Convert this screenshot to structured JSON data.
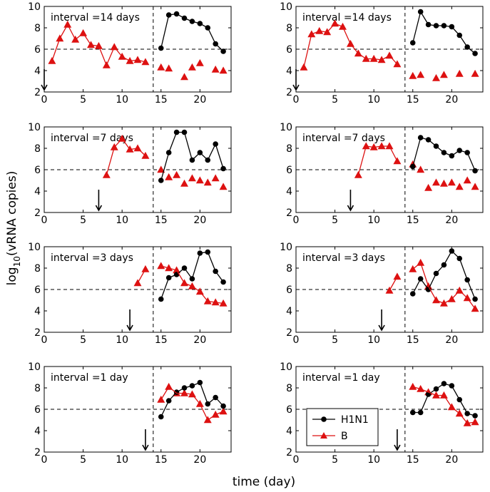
{
  "chart_data": {
    "type": "line",
    "ylabel_main": "log",
    "ylabel_sub": "10",
    "ylabel_rest": "(vRNA copies)",
    "xlabel": "time (day)",
    "xlim": [
      0,
      24
    ],
    "ylim": [
      2,
      10
    ],
    "xticks": [
      "0",
      "5",
      "10",
      "15",
      "20"
    ],
    "yticks": [
      "2",
      "4",
      "6",
      "8",
      "10"
    ],
    "threshold": 6,
    "switch_day": 14,
    "colors": {
      "h1n1": "#000000",
      "b": "#dd1111"
    },
    "legend": {
      "h1n1": "H1N1",
      "b": "B"
    },
    "panels": [
      {
        "label": "interval =14 days",
        "arrow": 0,
        "b": [
          [
            1,
            4.9
          ],
          [
            2,
            7.0
          ],
          [
            3,
            8.3
          ],
          [
            4,
            6.9
          ],
          [
            5,
            7.5
          ],
          [
            6,
            6.4
          ],
          [
            7,
            6.3
          ],
          [
            8,
            4.5
          ],
          [
            9,
            6.2
          ],
          [
            10,
            5.3
          ],
          [
            11,
            4.9
          ],
          [
            12,
            5.0
          ],
          [
            13,
            4.8
          ]
        ],
        "b_late": [
          [
            15,
            4.3
          ],
          [
            16,
            4.2
          ],
          [
            18,
            3.4
          ],
          [
            19,
            4.3
          ],
          [
            20,
            4.7
          ],
          [
            22,
            4.1
          ],
          [
            23,
            4.0
          ]
        ],
        "h1n1": [
          [
            15,
            6.1
          ],
          [
            16,
            9.2
          ],
          [
            17,
            9.3
          ],
          [
            18,
            8.9
          ],
          [
            19,
            8.6
          ],
          [
            20,
            8.4
          ],
          [
            21,
            8.0
          ],
          [
            22,
            6.5
          ],
          [
            23,
            5.8
          ]
        ]
      },
      {
        "label": "interval =14 days",
        "arrow": 0,
        "b": [
          [
            1,
            4.3
          ],
          [
            2,
            7.4
          ],
          [
            3,
            7.7
          ],
          [
            4,
            7.6
          ],
          [
            5,
            8.4
          ],
          [
            6,
            8.1
          ],
          [
            7,
            6.5
          ],
          [
            8,
            5.6
          ],
          [
            9,
            5.1
          ],
          [
            10,
            5.1
          ],
          [
            11,
            5.0
          ],
          [
            12,
            5.4
          ],
          [
            13,
            4.6
          ]
        ],
        "b_late": [
          [
            15,
            3.5
          ],
          [
            16,
            3.6
          ],
          [
            18,
            3.3
          ],
          [
            19,
            3.6
          ],
          [
            21,
            3.7
          ],
          [
            23,
            3.7
          ]
        ],
        "h1n1": [
          [
            15,
            6.6
          ],
          [
            16,
            9.5
          ],
          [
            17,
            8.3
          ],
          [
            18,
            8.2
          ],
          [
            19,
            8.2
          ],
          [
            20,
            8.1
          ],
          [
            21,
            7.3
          ],
          [
            22,
            6.2
          ],
          [
            23,
            5.6
          ]
        ]
      },
      {
        "label": "interval =7 days",
        "arrow": 7,
        "b": [
          [
            8,
            5.5
          ],
          [
            9,
            8.1
          ],
          [
            10,
            8.9
          ],
          [
            11,
            7.9
          ],
          [
            12,
            8.0
          ],
          [
            13,
            7.3
          ]
        ],
        "b_late": [
          [
            15,
            6.0
          ],
          [
            16,
            5.3
          ],
          [
            17,
            5.5
          ],
          [
            18,
            4.7
          ],
          [
            19,
            5.2
          ],
          [
            20,
            5.0
          ],
          [
            21,
            4.8
          ],
          [
            22,
            5.2
          ],
          [
            23,
            4.4
          ]
        ],
        "h1n1": [
          [
            15,
            5.0
          ],
          [
            16,
            7.6
          ],
          [
            17,
            9.5
          ],
          [
            18,
            9.5
          ],
          [
            19,
            6.9
          ],
          [
            20,
            7.6
          ],
          [
            21,
            6.9
          ],
          [
            22,
            8.4
          ],
          [
            23,
            6.1
          ]
        ]
      },
      {
        "label": "interval =7 days",
        "arrow": 7,
        "b": [
          [
            8,
            5.5
          ],
          [
            9,
            8.2
          ],
          [
            10,
            8.1
          ],
          [
            11,
            8.2
          ],
          [
            12,
            8.2
          ],
          [
            13,
            6.8
          ]
        ],
        "b_late": [
          [
            15,
            6.5
          ],
          [
            16,
            6.0
          ],
          [
            17,
            4.3
          ],
          [
            18,
            4.8
          ],
          [
            19,
            4.7
          ],
          [
            20,
            4.8
          ],
          [
            21,
            4.4
          ],
          [
            22,
            5.0
          ],
          [
            23,
            4.4
          ]
        ],
        "h1n1": [
          [
            15,
            6.3
          ],
          [
            16,
            9.0
          ],
          [
            17,
            8.8
          ],
          [
            18,
            8.2
          ],
          [
            19,
            7.6
          ],
          [
            20,
            7.3
          ],
          [
            21,
            7.8
          ],
          [
            22,
            7.6
          ],
          [
            23,
            5.9
          ]
        ]
      },
      {
        "label": "interval =3 days",
        "arrow": 11,
        "b": [
          [
            12,
            6.6
          ],
          [
            13,
            7.9
          ]
        ],
        "b_late": [
          [
            15,
            8.2
          ],
          [
            16,
            8.0
          ],
          [
            17,
            7.8
          ],
          [
            18,
            6.6
          ],
          [
            19,
            6.3
          ],
          [
            20,
            5.8
          ],
          [
            21,
            4.9
          ],
          [
            22,
            4.8
          ],
          [
            23,
            4.7
          ]
        ],
        "h1n1": [
          [
            15,
            5.1
          ],
          [
            16,
            7.1
          ],
          [
            17,
            7.4
          ],
          [
            18,
            8.0
          ],
          [
            19,
            7.0
          ],
          [
            20,
            9.4
          ],
          [
            21,
            9.5
          ],
          [
            22,
            7.7
          ],
          [
            23,
            6.7
          ]
        ]
      },
      {
        "label": "interval =3 days",
        "arrow": 11,
        "b": [
          [
            12,
            5.9
          ],
          [
            13,
            7.2
          ]
        ],
        "b_late": [
          [
            15,
            7.9
          ],
          [
            16,
            8.5
          ],
          [
            17,
            6.3
          ],
          [
            18,
            5.0
          ],
          [
            19,
            4.7
          ],
          [
            20,
            5.1
          ],
          [
            21,
            5.9
          ],
          [
            22,
            5.2
          ],
          [
            23,
            4.2
          ]
        ],
        "h1n1": [
          [
            15,
            5.6
          ],
          [
            16,
            7.0
          ],
          [
            17,
            6.0
          ],
          [
            18,
            7.5
          ],
          [
            19,
            8.3
          ],
          [
            20,
            9.6
          ],
          [
            21,
            8.9
          ],
          [
            22,
            6.9
          ],
          [
            23,
            5.1
          ]
        ]
      },
      {
        "label": "interval =1 day",
        "arrow": 13,
        "b": [],
        "b_late": [
          [
            15,
            6.9
          ],
          [
            16,
            8.1
          ],
          [
            17,
            7.5
          ],
          [
            18,
            7.5
          ],
          [
            19,
            7.4
          ],
          [
            20,
            6.5
          ],
          [
            21,
            5.0
          ],
          [
            22,
            5.5
          ],
          [
            23,
            5.8
          ]
        ],
        "h1n1": [
          [
            15,
            5.3
          ],
          [
            16,
            6.8
          ],
          [
            17,
            7.6
          ],
          [
            18,
            8.0
          ],
          [
            19,
            8.2
          ],
          [
            20,
            8.5
          ],
          [
            21,
            6.5
          ],
          [
            22,
            7.1
          ],
          [
            23,
            6.3
          ]
        ]
      },
      {
        "label": "interval =1 day",
        "arrow": 13,
        "b": [],
        "b_late": [
          [
            15,
            8.1
          ],
          [
            16,
            7.9
          ],
          [
            17,
            7.6
          ],
          [
            18,
            7.3
          ],
          [
            19,
            7.3
          ],
          [
            20,
            6.2
          ],
          [
            21,
            5.6
          ],
          [
            22,
            4.7
          ],
          [
            23,
            4.8
          ]
        ],
        "h1n1": [
          [
            15,
            5.7
          ],
          [
            16,
            5.7
          ],
          [
            17,
            7.4
          ],
          [
            18,
            7.9
          ],
          [
            19,
            8.4
          ],
          [
            20,
            8.2
          ],
          [
            21,
            6.9
          ],
          [
            22,
            5.6
          ],
          [
            23,
            5.4
          ]
        ]
      }
    ]
  }
}
